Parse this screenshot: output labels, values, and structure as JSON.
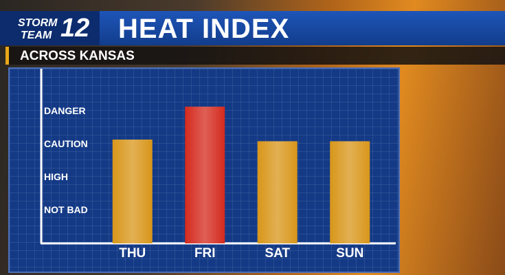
{
  "logo": {
    "line1": "STORM",
    "line2": "TEAM",
    "number": "12"
  },
  "chart_data": {
    "type": "bar",
    "title": "HEAT INDEX",
    "subtitle": "ACROSS KANSAS",
    "categories": [
      "THU",
      "FRI",
      "SAT",
      "SUN"
    ],
    "values": [
      3.15,
      4.15,
      3.1,
      3.1
    ],
    "colors": [
      "#d8961a",
      "#d42a1e",
      "#d8961a",
      "#d8961a"
    ],
    "ylim": [
      0,
      5.3
    ],
    "yticks": [
      {
        "value": 1,
        "label": "NOT BAD"
      },
      {
        "value": 2,
        "label": "HIGH"
      },
      {
        "value": 3,
        "label": "CAUTION"
      },
      {
        "value": 4,
        "label": "DANGER"
      }
    ],
    "grid": false
  }
}
